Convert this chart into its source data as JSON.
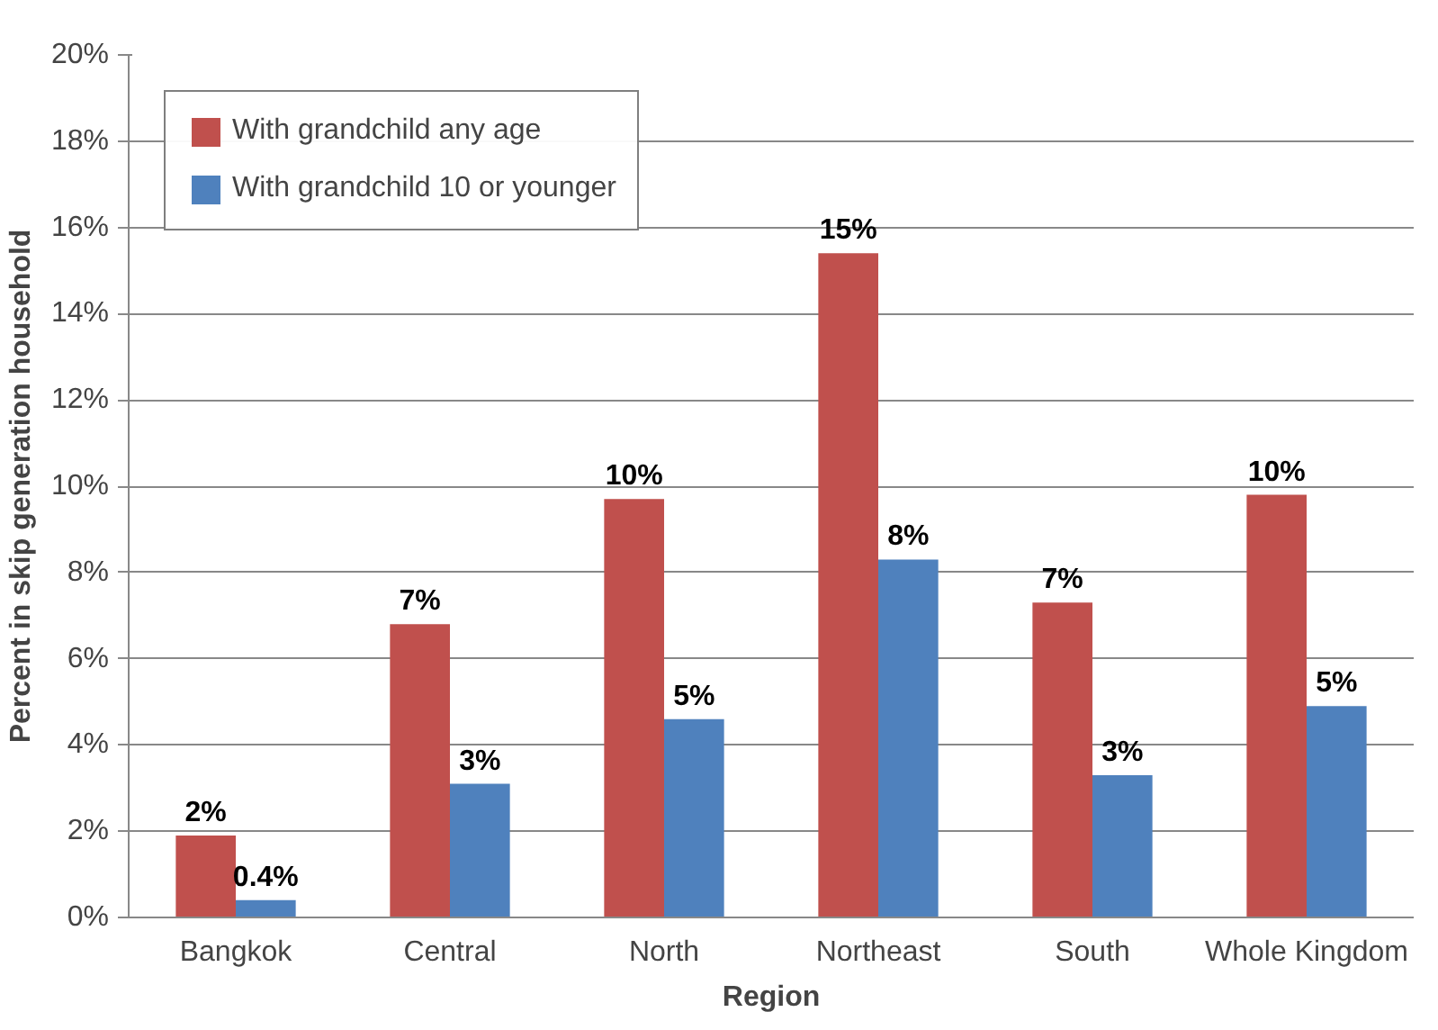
{
  "chart_data": {
    "type": "bar",
    "xlabel": "Region",
    "ylabel": "Percent in skip generation household",
    "categories": [
      "Bangkok",
      "Central",
      "North",
      "Northeast",
      "South",
      "Whole Kingdom"
    ],
    "series": [
      {
        "name": "With grandchild any age",
        "color": "#c0504d",
        "values": [
          1.9,
          6.8,
          9.7,
          15.4,
          7.3,
          9.8
        ],
        "value_labels": [
          "2%",
          "7%",
          "10%",
          "15%",
          "7%",
          "10%"
        ]
      },
      {
        "name": "With grandchild 10 or younger",
        "color": "#4f81bd",
        "values": [
          0.4,
          3.1,
          4.6,
          8.3,
          3.3,
          4.9
        ],
        "value_labels": [
          "0.4%",
          "3%",
          "5%",
          "8%",
          "3%",
          "5%"
        ]
      }
    ],
    "ylim": [
      0,
      20
    ],
    "yticks": [
      {
        "value": 0,
        "label": "0%"
      },
      {
        "value": 2,
        "label": "2%"
      },
      {
        "value": 4,
        "label": "4%"
      },
      {
        "value": 6,
        "label": "6%"
      },
      {
        "value": 8,
        "label": "8%"
      },
      {
        "value": 10,
        "label": "10%"
      },
      {
        "value": 12,
        "label": "12%"
      },
      {
        "value": 14,
        "label": "14%"
      },
      {
        "value": 16,
        "label": "16%"
      },
      {
        "value": 18,
        "label": "18%"
      },
      {
        "value": 20,
        "label": "20%"
      }
    ],
    "grid": "y",
    "legend": "top left"
  }
}
